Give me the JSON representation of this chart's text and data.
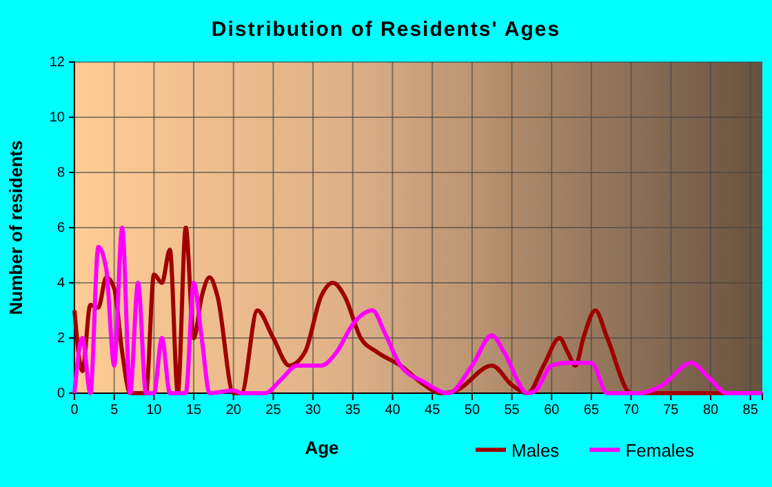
{
  "chart_data": {
    "type": "line",
    "title": "Distribution of Residents' Ages",
    "xlabel": "Age",
    "ylabel": "Number of residents",
    "xlim": [
      0,
      86.5
    ],
    "xticks": [
      0,
      5,
      10,
      15,
      20,
      25,
      30,
      35,
      40,
      45,
      50,
      55,
      60,
      65,
      70,
      75,
      80,
      85
    ],
    "ylim": [
      0,
      12
    ],
    "yticks": [
      0,
      2,
      4,
      6,
      8,
      10,
      12
    ],
    "grid": true,
    "legend": "bottom right",
    "line_style": "solid",
    "marker": "none",
    "series": [
      {
        "name": "Males",
        "color": "#a00000",
        "x": [
          0,
          1,
          2,
          3,
          4,
          5,
          6,
          7,
          8,
          9,
          10,
          11,
          12,
          13,
          14,
          15,
          16,
          17,
          18,
          20,
          21,
          23,
          25,
          27,
          29,
          31,
          32.5,
          34,
          36,
          38,
          41,
          44,
          46,
          48,
          52.5,
          55,
          57,
          59,
          61,
          62,
          63,
          64,
          65.5,
          67,
          70,
          75,
          80,
          86.5
        ],
        "values": [
          3,
          0.8,
          3.2,
          3.1,
          4.2,
          3.8,
          1.5,
          0,
          0,
          0,
          4.3,
          4,
          5.2,
          0,
          6,
          2,
          3.5,
          4.2,
          3.5,
          0,
          0,
          3,
          2,
          1,
          1.5,
          3.5,
          4,
          3.5,
          2,
          1.5,
          1,
          0.3,
          0,
          0.1,
          1,
          0.3,
          0,
          1,
          2,
          1.5,
          1,
          2,
          3,
          2,
          0,
          0,
          0,
          0
        ]
      },
      {
        "name": "Females",
        "color": "#ff00ff",
        "x": [
          0,
          1,
          2,
          3,
          4,
          5,
          6,
          7,
          8,
          9,
          10,
          11,
          12,
          14,
          15,
          16,
          17,
          20,
          21,
          24,
          26,
          28,
          30,
          31,
          33,
          35,
          37.5,
          39,
          41,
          44,
          47,
          50,
          52.5,
          54,
          57,
          58,
          60,
          62,
          65,
          67,
          71,
          74,
          77.5,
          80,
          82,
          86.5
        ],
        "values": [
          0,
          2,
          0,
          5.3,
          4.5,
          1,
          6,
          0,
          4,
          0,
          0,
          2,
          0,
          0,
          4,
          2,
          0,
          0.1,
          0,
          0,
          0.5,
          1,
          1,
          1,
          1.5,
          2.5,
          3,
          2.2,
          1,
          0.4,
          0,
          1,
          2.1,
          1.5,
          0,
          0.1,
          1,
          1.1,
          1.1,
          0,
          0,
          0.3,
          1.1,
          0.5,
          0,
          0
        ]
      }
    ]
  }
}
